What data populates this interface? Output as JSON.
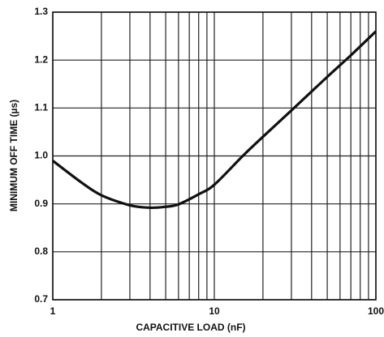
{
  "chart_data": {
    "type": "line",
    "x_label": "CAPACITIVE LOAD (nF)",
    "y_label": "MINIMUM OFF TIME (µs)",
    "x_log": true,
    "grid": true,
    "x": [
      1,
      1.5,
      2,
      3,
      4,
      5,
      6,
      8,
      10,
      15,
      20,
      30,
      50,
      70,
      100
    ],
    "series": [
      {
        "color": "#111111",
        "values": [
          0.99,
          0.945,
          0.918,
          0.897,
          0.892,
          0.894,
          0.899,
          0.92,
          0.94,
          1.0,
          1.04,
          1.095,
          1.165,
          1.21,
          1.26
        ]
      }
    ],
    "xlim": [
      1,
      100
    ],
    "xticks": [
      1,
      10,
      100
    ],
    "xminor_ticks": [
      2,
      3,
      4,
      5,
      6,
      7,
      8,
      9,
      20,
      30,
      40,
      50,
      60,
      70,
      80,
      90
    ],
    "ylim": [
      0.7,
      1.3
    ],
    "yticks": [
      0.7,
      0.8,
      0.9,
      {
        "value": 1,
        "label": "1.0"
      },
      1.1,
      1.2,
      1.3
    ]
  }
}
